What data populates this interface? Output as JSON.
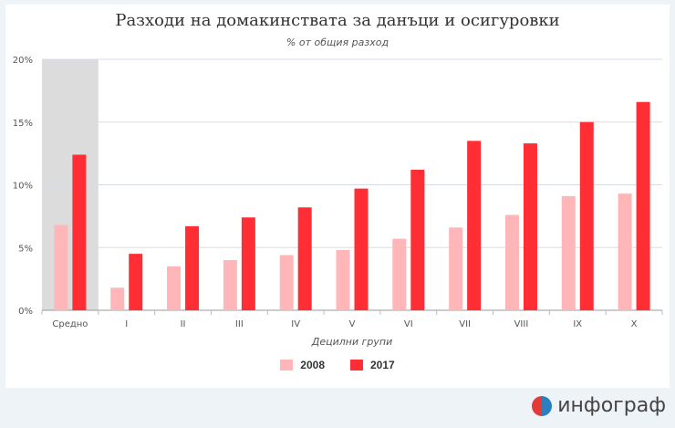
{
  "colors": {
    "s2008": "#ffb6b8",
    "s2017": "#ff2e35",
    "highlight": "#dcdcdc",
    "grid": "#d7dde6"
  },
  "legend_labels": [
    "2008",
    "2017"
  ],
  "brand": {
    "text": "инфограф",
    "icon": "infograf-logo-icon"
  },
  "chart_data": {
    "type": "bar",
    "title": "Разходи на домакинствата за данъци и осигуровки",
    "subtitle": "% от общия разход",
    "xlabel": "Децилни групи",
    "ylabel": "",
    "ylim": [
      0,
      20
    ],
    "yticks": [
      "0%",
      "5%",
      "10%",
      "15%",
      "20%"
    ],
    "categories": [
      "Средно",
      "I",
      "II",
      "III",
      "IV",
      "V",
      "VI",
      "VII",
      "VIII",
      "IX",
      "X"
    ],
    "highlight_category": "Средно",
    "legend_position": "bottom",
    "series": [
      {
        "name": "2008",
        "values": [
          6.8,
          1.8,
          3.5,
          4.0,
          4.4,
          4.8,
          5.7,
          6.6,
          7.6,
          9.1,
          9.3
        ]
      },
      {
        "name": "2017",
        "values": [
          12.4,
          4.5,
          6.7,
          7.4,
          8.2,
          9.7,
          11.2,
          13.5,
          13.3,
          15.0,
          16.6
        ]
      }
    ]
  }
}
